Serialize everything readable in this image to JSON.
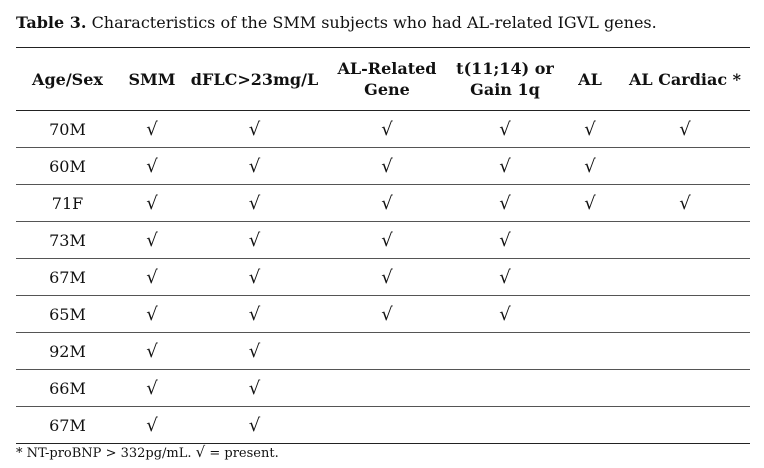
{
  "caption": {
    "label": "Table 3.",
    "text": "Characteristics of the SMM subjects who had AL-related IGVL genes."
  },
  "table": {
    "check_symbol": "√",
    "columns": [
      [
        "Age/Sex"
      ],
      [
        "SMM"
      ],
      [
        "dFLC>23mg/L"
      ],
      [
        "AL-Related",
        "Gene"
      ],
      [
        "t(11;14) or",
        "Gain 1q"
      ],
      [
        "AL"
      ],
      [
        "AL Cardiac *"
      ]
    ],
    "rows": [
      {
        "age_sex": "70M",
        "checks": [
          true,
          true,
          true,
          true,
          true,
          true
        ]
      },
      {
        "age_sex": "60M",
        "checks": [
          true,
          true,
          true,
          true,
          true,
          false
        ]
      },
      {
        "age_sex": "71F",
        "checks": [
          true,
          true,
          true,
          true,
          true,
          true
        ]
      },
      {
        "age_sex": "73M",
        "checks": [
          true,
          true,
          true,
          true,
          false,
          false
        ]
      },
      {
        "age_sex": "67M",
        "checks": [
          true,
          true,
          true,
          true,
          false,
          false
        ]
      },
      {
        "age_sex": "65M",
        "checks": [
          true,
          true,
          true,
          true,
          false,
          false
        ]
      },
      {
        "age_sex": "92M",
        "checks": [
          true,
          true,
          false,
          false,
          false,
          false
        ]
      },
      {
        "age_sex": "66M",
        "checks": [
          true,
          true,
          false,
          false,
          false,
          false
        ]
      },
      {
        "age_sex": "67M",
        "checks": [
          true,
          true,
          false,
          false,
          false,
          false
        ]
      }
    ]
  },
  "footnote": {
    "part1": "* NT-proBNP > 332pg/mL.",
    "symbol": "√",
    "part2": "= present."
  }
}
